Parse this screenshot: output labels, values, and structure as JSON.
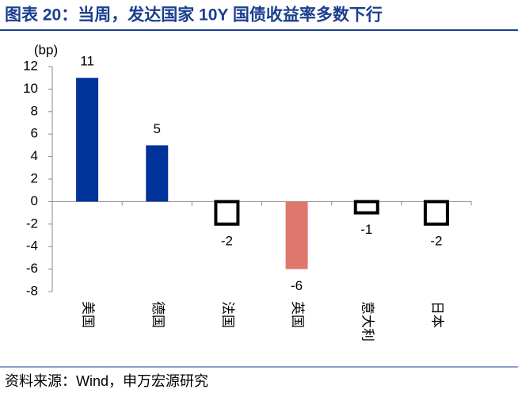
{
  "title": "图表 20：当周，发达国家 10Y 国债收益率多数下行",
  "source": "资料来源：Wind，申万宏源研究",
  "chart_data": {
    "type": "bar",
    "y_unit": "(bp)",
    "categories": [
      "美国",
      "德国",
      "法国",
      "英国",
      "意大利",
      "日本"
    ],
    "values": [
      11,
      5,
      -2,
      -6,
      -1,
      -2
    ],
    "colors": [
      "#003399",
      "#003399",
      "#ffffff",
      "#e0776c",
      "#ffffff",
      "#ffffff"
    ],
    "edge_colors": [
      "#003399",
      "#003399",
      "#000000",
      "#e0776c",
      "#000000",
      "#000000"
    ],
    "ylim": [
      -8,
      12
    ],
    "yticks": [
      -8,
      -6,
      -4,
      -2,
      0,
      2,
      4,
      6,
      8,
      10,
      12
    ]
  }
}
